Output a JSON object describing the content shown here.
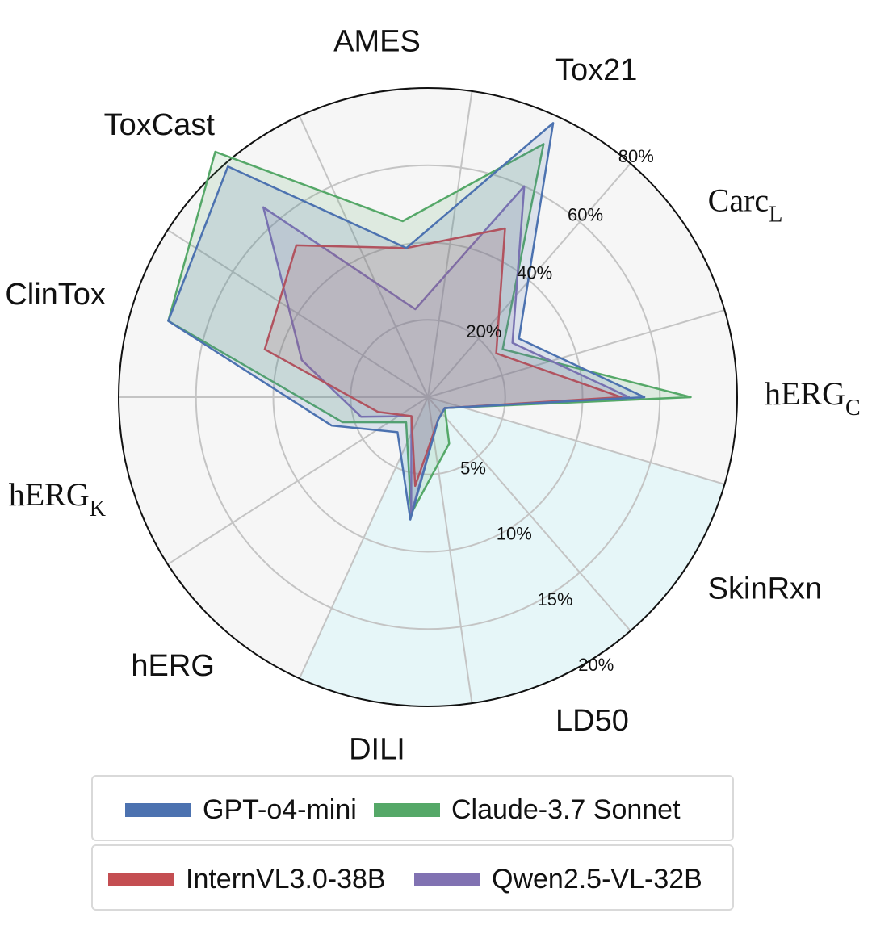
{
  "chart_data": {
    "type": "radar",
    "axes": [
      {
        "key": "hERG_C",
        "label_main": "hERG",
        "label_sub": "C",
        "serif": true
      },
      {
        "key": "Carc_L",
        "label_main": "Carc",
        "label_sub": "L",
        "serif": true
      },
      {
        "key": "Tox21",
        "label_main": "Tox21",
        "label_sub": "",
        "serif": false
      },
      {
        "key": "AMES",
        "label_main": "AMES",
        "label_sub": "",
        "serif": false
      },
      {
        "key": "ToxCast",
        "label_main": "ToxCast",
        "label_sub": "",
        "serif": false
      },
      {
        "key": "ClinTox",
        "label_main": "ClinTox",
        "label_sub": "",
        "serif": false
      },
      {
        "key": "hERG_K",
        "label_main": "hERG",
        "label_sub": "K",
        "serif": true
      },
      {
        "key": "hERG",
        "label_main": "hERG",
        "label_sub": "",
        "serif": false
      },
      {
        "key": "DILI",
        "label_main": "DILI",
        "label_sub": "",
        "serif": false
      },
      {
        "key": "LD50",
        "label_main": "LD50",
        "label_sub": "",
        "serif": false
      },
      {
        "key": "SkinRxn",
        "label_main": "SkinRxn",
        "label_sub": "",
        "serif": false
      }
    ],
    "scales": {
      "upper": {
        "max": 80,
        "ticks": [
          "20%",
          "40%",
          "60%",
          "80%"
        ]
      },
      "lower": {
        "max": 20,
        "ticks": [
          "5%",
          "10%",
          "15%",
          "20%"
        ]
      }
    },
    "series": [
      {
        "name": "GPT-o4-mini",
        "color": "#4c72b0",
        "values": [
          56,
          28,
          78,
          39,
          79,
          70,
          26,
          12,
          8,
          1.6,
          1.3
        ]
      },
      {
        "name": "Claude-3.7 Sonnet",
        "color": "#55a868",
        "values": [
          68,
          23,
          72,
          46,
          84,
          70,
          23,
          8.6,
          7.6,
          3.3,
          1.3
        ]
      },
      {
        "name": "InternVL3.0-38B",
        "color": "#c44e52",
        "values": [
          50,
          21,
          48,
          39,
          52,
          44,
          13.5,
          6.5,
          5.8,
          1.6,
          1.3
        ]
      },
      {
        "name": "Qwen2.5-VL-32B",
        "color": "#8172b2",
        "values": [
          52,
          26,
          60,
          23,
          65,
          34,
          18,
          6.5,
          7.6,
          1.6,
          1.3
        ]
      }
    ],
    "grid": true,
    "legend_position": "bottom"
  },
  "legend": {
    "row1": [
      {
        "name": "GPT-o4-mini",
        "color": "#4c72b0"
      },
      {
        "name": "Claude-3.7 Sonnet",
        "color": "#55a868"
      }
    ],
    "row2": [
      {
        "name": "InternVL3.0-38B",
        "color": "#c44e52"
      },
      {
        "name": "Qwen2.5-VL-32B",
        "color": "#8172b2"
      }
    ]
  }
}
